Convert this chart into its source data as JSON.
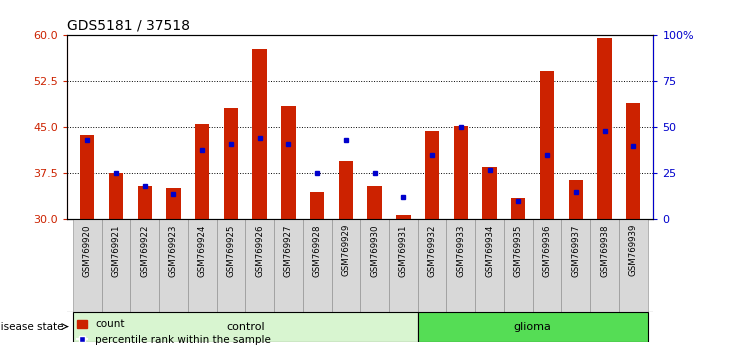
{
  "title": "GDS5181 / 37518",
  "samples": [
    "GSM769920",
    "GSM769921",
    "GSM769922",
    "GSM769923",
    "GSM769924",
    "GSM769925",
    "GSM769926",
    "GSM769927",
    "GSM769928",
    "GSM769929",
    "GSM769930",
    "GSM769931",
    "GSM769932",
    "GSM769933",
    "GSM769934",
    "GSM769935",
    "GSM769936",
    "GSM769937",
    "GSM769938",
    "GSM769939"
  ],
  "bar_heights": [
    43.8,
    37.5,
    35.5,
    35.2,
    45.5,
    48.2,
    57.8,
    48.5,
    34.5,
    39.5,
    35.5,
    30.8,
    44.5,
    45.2,
    38.5,
    33.5,
    54.2,
    36.5,
    59.5,
    49.0
  ],
  "percentile_pct": [
    43,
    25,
    18,
    14,
    38,
    41,
    44,
    41,
    25,
    43,
    25,
    12,
    35,
    50,
    27,
    10,
    35,
    15,
    48,
    40
  ],
  "ymin": 30,
  "ymax": 60,
  "yticks_left": [
    30,
    37.5,
    45,
    52.5,
    60
  ],
  "right_pct_ticks": [
    0,
    25,
    50,
    75,
    100
  ],
  "right_pct_labels": [
    "0",
    "25",
    "50",
    "75",
    "100%"
  ],
  "bar_color": "#cc2200",
  "dot_color": "#0000cc",
  "bar_width": 0.5,
  "control_color": "#d8f5d0",
  "glioma_color": "#55dd55",
  "n_control": 12,
  "n_glioma": 8,
  "legend_count_label": "count",
  "legend_pct_label": "percentile rank within the sample",
  "disease_label": "disease state"
}
